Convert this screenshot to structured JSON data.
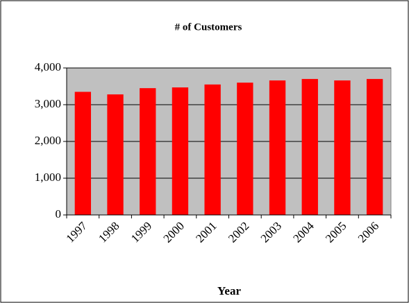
{
  "chart_data": {
    "type": "bar",
    "title": "# of Customers",
    "x_label": "Year",
    "categories": [
      "1997",
      "1998",
      "1999",
      "2000",
      "2001",
      "2002",
      "2003",
      "2004",
      "2005",
      "2006"
    ],
    "values": [
      3350,
      3280,
      3450,
      3470,
      3550,
      3600,
      3660,
      3700,
      3660,
      3700
    ],
    "color": "#ff0000",
    "ylim": [
      0,
      4000
    ],
    "yticks": [
      0,
      {
        "value": 1000,
        "label": "1,000"
      },
      {
        "value": 2000,
        "label": "2,000"
      },
      {
        "value": 3000,
        "label": "3,000"
      },
      {
        "value": 4000,
        "label": "4,000"
      }
    ],
    "grid": true
  }
}
